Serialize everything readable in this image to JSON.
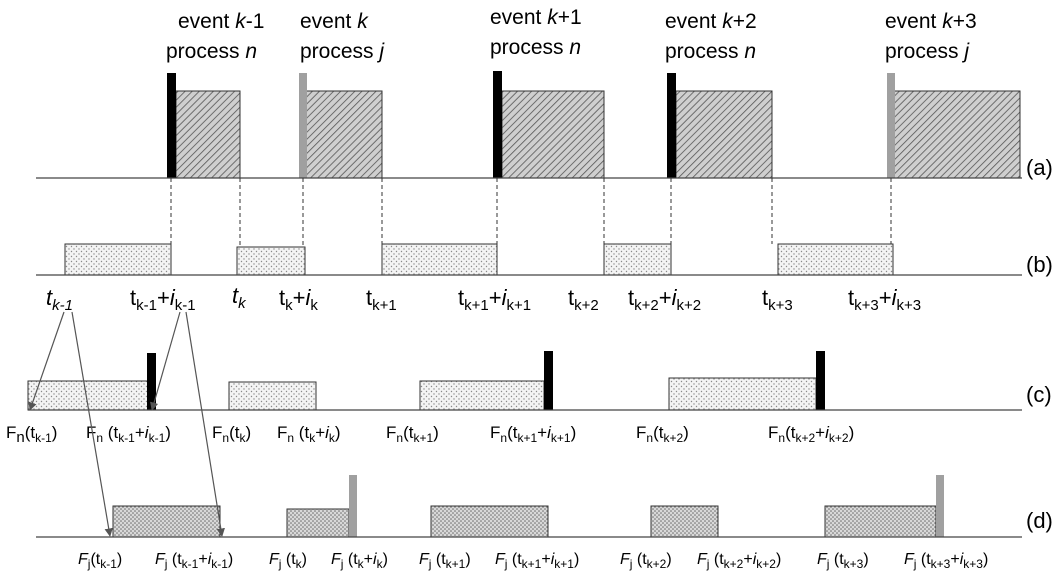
{
  "events": [
    {
      "label": "event",
      "k": "k",
      "suffix": "-1",
      "process_label": "process",
      "proc": "n"
    },
    {
      "label": "event",
      "k": "k",
      "suffix": "",
      "process_label": "process",
      "proc": "j"
    },
    {
      "label": "event",
      "k": "k",
      "suffix": "+1",
      "process_label": "process",
      "proc": "n"
    },
    {
      "label": "event",
      "k": "k",
      "suffix": "+2",
      "process_label": "process",
      "proc": "n"
    },
    {
      "label": "event",
      "k": "k",
      "suffix": "+3",
      "process_label": "process",
      "proc": "j"
    }
  ],
  "row_labels": {
    "a": "(a)",
    "b": "(b)",
    "c": "(c)",
    "d": "(d)"
  },
  "colors": {
    "process_n": "#000000",
    "process_j": "#a0a0a0",
    "hatch": "#555555",
    "dots": "#9a9a9a"
  },
  "time_labels": [
    {
      "t": "t",
      "sub": "k-1",
      "italic_sub": true
    },
    {
      "t": "t",
      "sub": "k-1",
      "plus": "+",
      "i": "i",
      "isub": "k-1"
    },
    {
      "t": "t",
      "sub": "k",
      "italic_sub": true
    },
    {
      "t": "t",
      "sub": "k",
      "plus": "+",
      "i": "i",
      "isub": "k"
    },
    {
      "t": "t",
      "sub": "k+1"
    },
    {
      "t": "t",
      "sub": "k+1",
      "plus": "+",
      "i": "i",
      "isub": "k+1"
    },
    {
      "t": "t",
      "sub": "k+2"
    },
    {
      "t": "t",
      "sub": "k+2",
      "plus": "+",
      "i": "i",
      "isub": "k+2"
    },
    {
      "t": "t",
      "sub": "k+3"
    },
    {
      "t": "t",
      "sub": "k+3",
      "plus": "+",
      "i": "i",
      "isub": "k+3"
    }
  ],
  "fn_labels": [
    {
      "F": "F",
      "sub": "n",
      "arg": "(t",
      "asub": "k-1",
      "tail": ")"
    },
    {
      "F": "F",
      "sub": "n",
      "arg": " (t",
      "asub": "k-1",
      "plus": "+",
      "i": "i",
      "isub": "k-1",
      "tail": ")"
    },
    {
      "F": "F",
      "sub": "n",
      "arg": "(t",
      "asub": "k",
      "tail": ")"
    },
    {
      "F": "F",
      "sub": "n",
      "arg": " (t",
      "asub": "k",
      "plus": "+",
      "i": "i",
      "isub": "k",
      "tail": ")"
    },
    {
      "F": "F",
      "sub": "n",
      "arg": "(t",
      "asub": "k+1",
      "tail": ")"
    },
    {
      "F": "F",
      "sub": "n",
      "arg": "(t",
      "asub": "k+1",
      "plus": "+",
      "i": "i",
      "isub": "k+1",
      "tail": ")"
    },
    {
      "F": "F",
      "sub": "n",
      "arg": "(t",
      "asub": "k+2",
      "tail": ")"
    },
    {
      "F": "F",
      "sub": "n",
      "arg": "(t",
      "asub": "k+2",
      "plus": "+",
      "i": "i",
      "isub": "k+2",
      "tail": ")"
    }
  ],
  "fj_labels": [
    {
      "F": "F",
      "sub": "j",
      "arg": "(t",
      "asub": "k-1",
      "tail": ")"
    },
    {
      "F": "F",
      "sub": "j",
      "arg": " (t",
      "asub": "k-1",
      "plus": "+",
      "i": "i",
      "isub": "k-1",
      "tail": ")"
    },
    {
      "F": "F",
      "sub": "j",
      "arg": " (t",
      "asub": "k",
      "tail": ")"
    },
    {
      "F": "F",
      "sub": "j",
      "arg": " (t",
      "asub": "k",
      "plus": "+",
      "i": "i",
      "isub": "k",
      "tail": ")"
    },
    {
      "F": "F",
      "sub": "j",
      "arg": " (t",
      "asub": "k+1",
      "tail": ")"
    },
    {
      "F": "F",
      "sub": "j",
      "arg": " (t",
      "asub": "k+1",
      "plus": "+",
      "i": "i",
      "isub": "k+1",
      "tail": ")"
    },
    {
      "F": "F",
      "sub": "j",
      "arg": " (t",
      "asub": "k+2",
      "tail": ")"
    },
    {
      "F": "F",
      "sub": "j",
      "arg": " (t",
      "asub": "k+2",
      "plus": "+",
      "i": "i",
      "isub": "k+2",
      "tail": ")"
    },
    {
      "F": "F",
      "sub": "j",
      "arg": " (t",
      "asub": "k+3",
      "tail": ")"
    },
    {
      "F": "F",
      "sub": "j",
      "arg": " (t",
      "asub": "k+3",
      "plus": "+",
      "i": "i",
      "isub": "k+3",
      "tail": ")"
    }
  ]
}
